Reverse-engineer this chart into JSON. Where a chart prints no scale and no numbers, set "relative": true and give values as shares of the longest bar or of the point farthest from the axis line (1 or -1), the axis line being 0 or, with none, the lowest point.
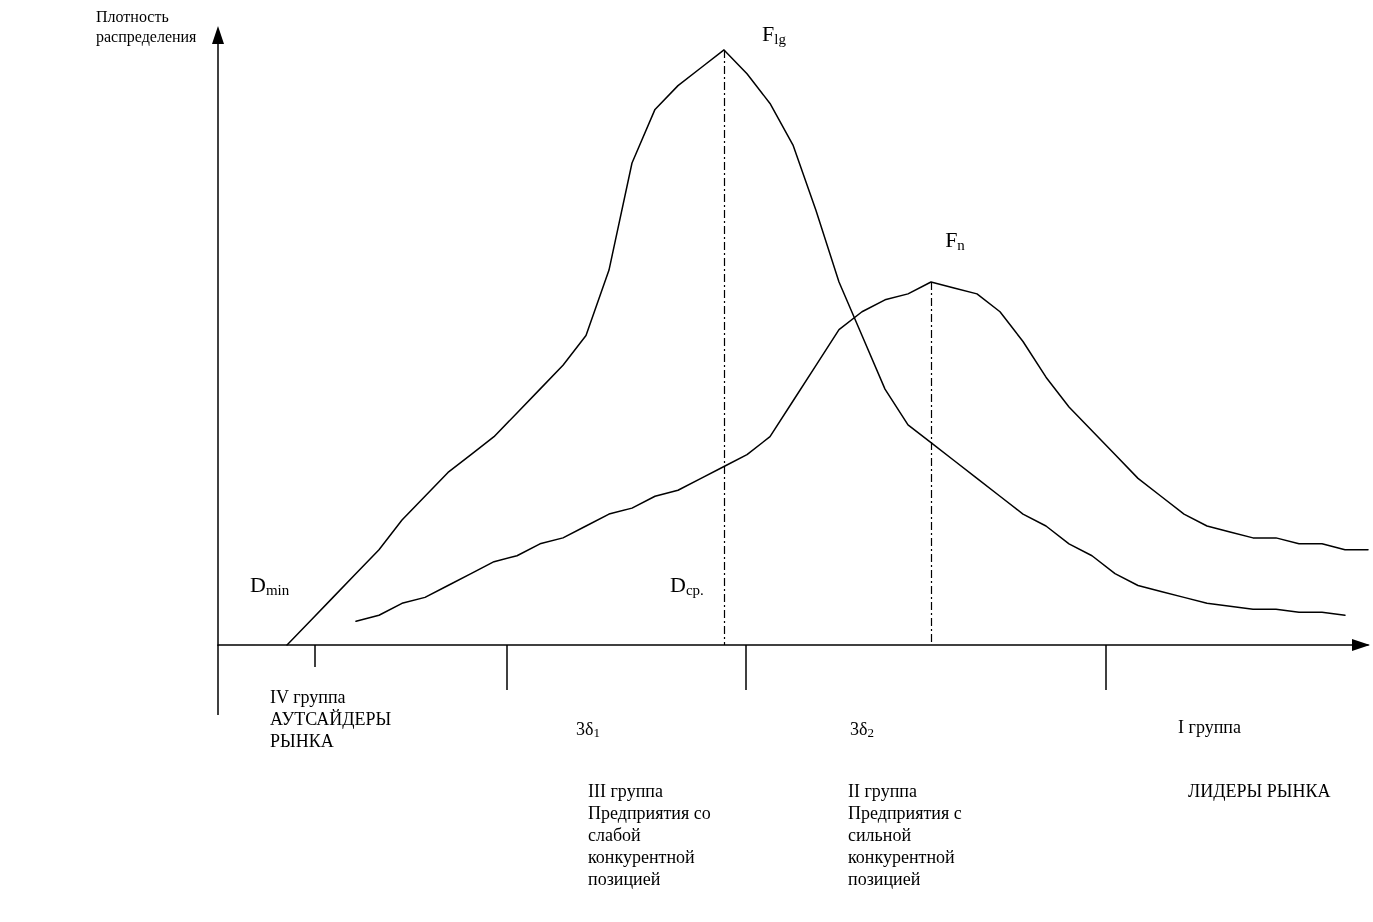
{
  "chart_data": {
    "type": "line",
    "relative": true,
    "ylabel": "Плотность\nраспределения",
    "categories": [
      null,
      null,
      null,
      null,
      null,
      null,
      null,
      null,
      null,
      null,
      null,
      null,
      null,
      null,
      null,
      null,
      null,
      null,
      null,
      null,
      null,
      null,
      null,
      null,
      null,
      null,
      null,
      null,
      null,
      null,
      null,
      null,
      null,
      null,
      null,
      null,
      null,
      null,
      null,
      null,
      null,
      null,
      null,
      null,
      null,
      null,
      null,
      null,
      null,
      null,
      null
    ],
    "grid": false,
    "legend": false,
    "marker": "none",
    "line_style": "solid",
    "series": [
      {
        "name": "F$_{lg}$",
        "color": "#000000",
        "values": [
          null,
          null,
          null,
          0,
          0.04,
          0.08,
          0.12,
          0.16,
          0.21,
          0.25,
          0.29,
          0.32,
          0.35,
          0.39,
          0.43,
          0.47,
          0.52,
          0.63,
          0.81,
          0.9,
          0.94,
          0.97,
          1,
          0.96,
          0.91,
          0.84,
          0.73,
          0.61,
          0.52,
          0.43,
          0.37,
          0.34,
          0.31,
          0.28,
          0.25,
          0.22,
          0.2,
          0.17,
          0.15,
          0.12,
          0.1,
          0.09,
          0.08,
          0.07,
          0.065,
          0.06,
          0.06,
          0.055,
          0.055,
          0.05,
          null
        ]
      },
      {
        "name": "F$_{n}$",
        "color": "#000000",
        "values": [
          null,
          null,
          null,
          null,
          null,
          null,
          0.04,
          0.05,
          0.07,
          0.08,
          0.1,
          0.12,
          0.14,
          0.15,
          0.17,
          0.18,
          0.2,
          0.22,
          0.23,
          0.25,
          0.26,
          0.28,
          0.3,
          0.32,
          0.35,
          0.41,
          0.47,
          0.53,
          0.56,
          0.58,
          0.59,
          0.61,
          0.6,
          0.59,
          0.56,
          0.51,
          0.45,
          0.4,
          0.36,
          0.32,
          0.28,
          0.25,
          0.22,
          0.2,
          0.19,
          0.18,
          0.18,
          0.17,
          0.17,
          0.16,
          0.16
        ]
      }
    ],
    "annotations": [
      "D$_{min}$",
      "D$_{cp.}$",
      "IV группа\nАУТСАЙДЕРЫ\nРЫНКА",
      "3δ$_{1}$",
      "3δ$_{2}$",
      "I группа",
      "III группа\nПредприятия со\nслабой\nконкурентной\nпозицией",
      "II группа\nПредприятия с\nсильной\nконкурентной\nпозицией",
      "ЛИДЕРЫ РЫНКА"
    ]
  }
}
